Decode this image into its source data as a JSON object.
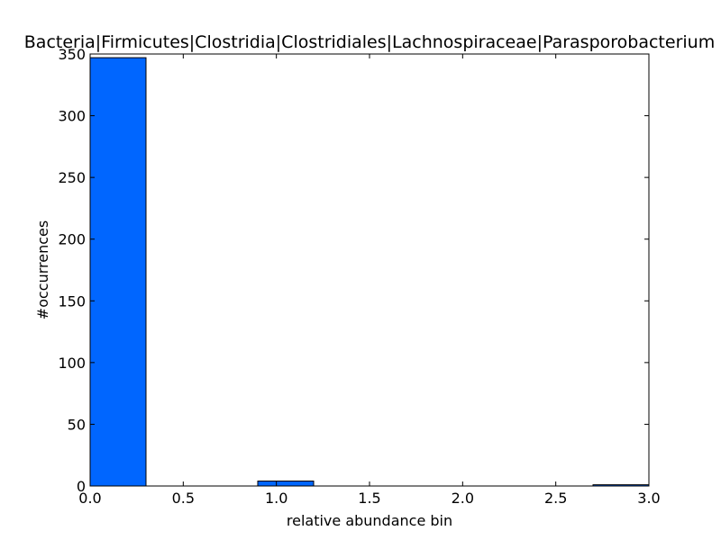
{
  "chart_data": {
    "type": "bar",
    "title": "Bacteria|Firmicutes|Clostridia|Clostridiales|Lachnospiraceae|Parasporobacterium",
    "xlabel": "relative abundance bin",
    "ylabel": "#occurrences",
    "xlim": [
      0.0,
      3.0
    ],
    "ylim": [
      0,
      350
    ],
    "xticks": [
      "0.0",
      "0.5",
      "1.0",
      "1.5",
      "2.0",
      "2.5",
      "3.0"
    ],
    "yticks": [
      "0",
      "50",
      "100",
      "150",
      "200",
      "250",
      "300",
      "350"
    ],
    "bins": [
      {
        "x0": 0.0,
        "x1": 0.3,
        "count": 347
      },
      {
        "x0": 0.3,
        "x1": 0.6,
        "count": 0
      },
      {
        "x0": 0.6,
        "x1": 0.9,
        "count": 0
      },
      {
        "x0": 0.9,
        "x1": 1.2,
        "count": 4
      },
      {
        "x0": 1.2,
        "x1": 1.5,
        "count": 0
      },
      {
        "x0": 1.5,
        "x1": 1.8,
        "count": 0
      },
      {
        "x0": 1.8,
        "x1": 2.1,
        "count": 0
      },
      {
        "x0": 2.1,
        "x1": 2.4,
        "count": 0
      },
      {
        "x0": 2.4,
        "x1": 2.7,
        "count": 0
      },
      {
        "x0": 2.7,
        "x1": 3.0,
        "count": 1
      }
    ],
    "bar_color": "#0066ff",
    "grid": false,
    "legend": false
  }
}
